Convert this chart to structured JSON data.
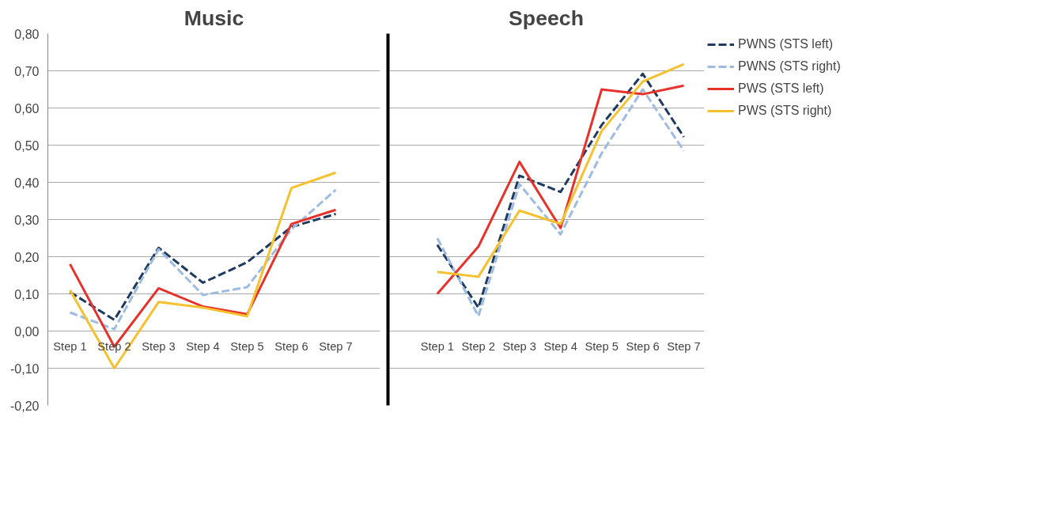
{
  "chart_data": [
    {
      "type": "line",
      "title": "Music",
      "categories": [
        "Step 1",
        "Step 2",
        "Step 3",
        "Step 4",
        "Step 5",
        "Step 6",
        "Step 7"
      ],
      "series": [
        {
          "color": "#1f3a5f",
          "line_style": "dashed",
          "values": [
            0.105,
            0.03,
            0.224,
            0.13,
            0.185,
            0.28,
            0.315
          ]
        },
        {
          "color": "#9dbce0",
          "line_style": "dashed",
          "values": [
            0.05,
            0.005,
            0.22,
            0.097,
            0.118,
            0.274,
            0.38
          ]
        },
        {
          "color": "#e8312a",
          "line_style": "solid",
          "values": [
            0.18,
            -0.042,
            0.115,
            0.066,
            0.045,
            0.288,
            0.326
          ]
        },
        {
          "color": "#f5c12e",
          "line_style": "solid",
          "values": [
            0.11,
            -0.1,
            0.078,
            0.063,
            0.04,
            0.385,
            0.426
          ]
        }
      ],
      "ylim": [
        -0.2,
        0.8
      ],
      "yticks": [
        {
          "value": -0.2,
          "label": "-0,20"
        },
        {
          "value": -0.1,
          "label": "-0,10"
        },
        {
          "value": 0,
          "label": "0,00"
        },
        {
          "value": 0.1,
          "label": "0,10"
        },
        {
          "value": 0.2,
          "label": "0,20"
        },
        {
          "value": 0.3,
          "label": "0,30"
        },
        {
          "value": 0.4,
          "label": "0,40"
        },
        {
          "value": 0.5,
          "label": "0,50"
        },
        {
          "value": 0.6,
          "label": "0,60"
        },
        {
          "value": 0.7,
          "label": "0,70"
        },
        {
          "value": 0.8,
          "label": "0,80"
        }
      ],
      "grid": "y",
      "legend": false,
      "marker": "none"
    },
    {
      "type": "line",
      "title": "Speech",
      "categories": [
        "Step 1",
        "Step 2",
        "Step 3",
        "Step 4",
        "Step 5",
        "Step 6",
        "Step 7"
      ],
      "series": [
        {
          "name": "PWNS (STS left)",
          "color": "#1f3a5f",
          "line_style": "dashed",
          "values": [
            0.232,
            0.063,
            0.418,
            0.374,
            0.554,
            0.692,
            0.522
          ]
        },
        {
          "name": "PWNS (STS right)",
          "color": "#9dbce0",
          "line_style": "dashed",
          "values": [
            0.25,
            0.04,
            0.395,
            0.26,
            0.478,
            0.65,
            0.485
          ]
        },
        {
          "name": "PWS (STS left)",
          "color": "#e8312a",
          "line_style": "solid",
          "values": [
            0.1,
            0.227,
            0.455,
            0.277,
            0.65,
            0.637,
            0.66
          ]
        },
        {
          "name": "PWS (STS right)",
          "color": "#f5c12e",
          "line_style": "solid",
          "values": [
            0.159,
            0.146,
            0.324,
            0.288,
            0.538,
            0.671,
            0.718
          ]
        }
      ],
      "ylim": [
        -0.2,
        0.8
      ],
      "yticks": [
        -0.2,
        -0.1,
        0,
        0.1,
        0.2,
        0.3,
        0.4,
        0.5,
        0.6,
        0.7,
        0.8
      ],
      "tick_labels": "x",
      "grid": "y",
      "legend": "right",
      "marker": "none"
    }
  ]
}
